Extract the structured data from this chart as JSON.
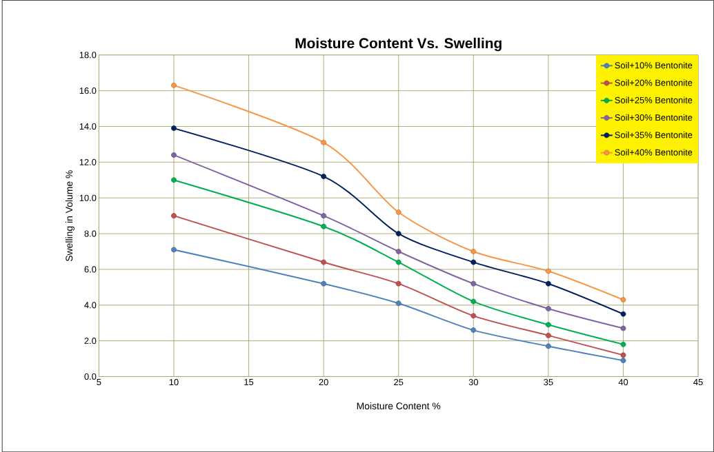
{
  "chart_data": {
    "type": "line",
    "title": "Moisture Content Vs. Swelling",
    "xlabel": "Moisture Content %",
    "ylabel": "Swelling in Volume  %",
    "x": [
      10,
      20,
      25,
      30,
      35,
      40
    ],
    "series": [
      {
        "name": "Soil+10% Bentonite",
        "color": "#4f81bd",
        "values": [
          7.1,
          5.2,
          4.1,
          2.6,
          1.7,
          0.9
        ]
      },
      {
        "name": "Soil+20% Bentonite",
        "color": "#c0504d",
        "values": [
          9.0,
          6.4,
          5.2,
          3.4,
          2.3,
          1.2
        ]
      },
      {
        "name": "Soil+25% Bentonite",
        "color": "#00b050",
        "values": [
          11.0,
          8.4,
          6.4,
          4.2,
          2.9,
          1.8
        ]
      },
      {
        "name": "Soil+30% Bentonite",
        "color": "#8064a2",
        "values": [
          12.4,
          9.0,
          7.0,
          5.2,
          3.8,
          2.7
        ]
      },
      {
        "name": "Soil+35% Bentonite",
        "color": "#002060",
        "values": [
          13.9,
          11.2,
          8.0,
          6.4,
          5.2,
          3.5
        ]
      },
      {
        "name": "Soil+40% Bentonite",
        "color": "#f79646",
        "values": [
          16.3,
          13.1,
          9.2,
          7.0,
          5.9,
          4.3
        ]
      }
    ],
    "xlim": [
      5,
      45
    ],
    "xticks": [
      5,
      10,
      15,
      20,
      25,
      30,
      35,
      40,
      45
    ],
    "ylim": [
      0,
      18
    ],
    "yticks": [
      {
        "value": 0,
        "label": "0.0"
      },
      {
        "value": 2,
        "label": "2.0"
      },
      {
        "value": 4,
        "label": "4.0"
      },
      {
        "value": 6,
        "label": "6.0"
      },
      {
        "value": 8,
        "label": "8.0"
      },
      {
        "value": 10,
        "label": "10.0"
      },
      {
        "value": 12,
        "label": "12.0"
      },
      {
        "value": 14,
        "label": "14.0"
      },
      {
        "value": 16,
        "label": "16.0"
      },
      {
        "value": 18,
        "label": "18.0"
      }
    ],
    "grid": true,
    "legend": "top right",
    "marker": "circle",
    "line_style": "solid"
  }
}
